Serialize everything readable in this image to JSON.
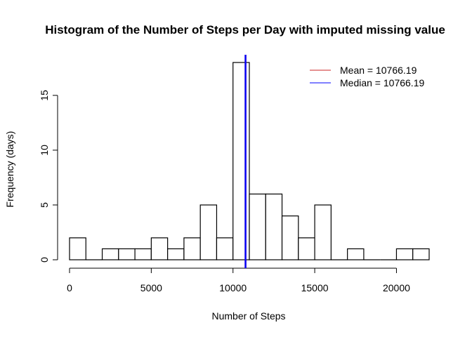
{
  "chart_data": {
    "type": "bar",
    "title": "Histogram of the Number of Steps per Day with imputed missing value",
    "xlabel": "Number of Steps",
    "ylabel": "Frequency (days)",
    "bin_width": 1000,
    "bins_start": 0,
    "counts": [
      2,
      0,
      1,
      1,
      1,
      2,
      1,
      2,
      5,
      2,
      18,
      6,
      6,
      4,
      2,
      5,
      0,
      1,
      0,
      0,
      1,
      1
    ],
    "xlim": [
      0,
      22000
    ],
    "ylim": [
      0,
      18
    ],
    "x_ticks": [
      0,
      5000,
      10000,
      15000,
      20000
    ],
    "x_tick_labels": [
      "0",
      "5000",
      "10000",
      "15000",
      "20000"
    ],
    "y_ticks": [
      0,
      5,
      10,
      15
    ],
    "y_tick_labels": [
      "0",
      "5",
      "10",
      "15"
    ],
    "reference_lines": [
      {
        "name": "Mean",
        "value": 10766.19,
        "color": "#cd2626"
      },
      {
        "name": "Median",
        "value": 10766.19,
        "color": "#0000ff"
      }
    ],
    "legend": {
      "position": "top-right",
      "entries": [
        {
          "label": "Mean =  10766.19",
          "color": "#cd2626"
        },
        {
          "label": "Median =  10766.19",
          "color": "#0000ff"
        }
      ]
    },
    "grid": false
  }
}
